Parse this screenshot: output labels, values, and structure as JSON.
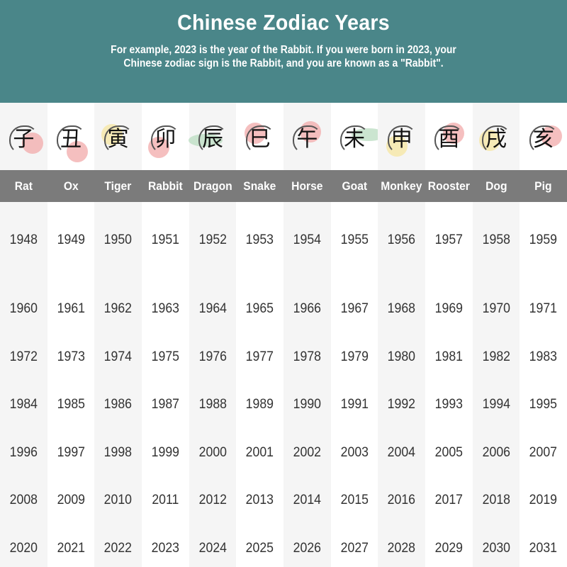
{
  "header": {
    "title": "Chinese Zodiac Years",
    "subtitle": "For example, 2023 is the year of the Rabbit. If you were born in 2023, your Chinese zodiac sign is the Rabbit, and you are known as a \"Rabbit\"."
  },
  "colors": {
    "header_bg": "#4a8689",
    "band_bg": "#7b7b7b",
    "alt_col_bg": "#f5f5f5",
    "pink": "#f2a9a9",
    "yellow": "#f5e6a0",
    "green": "#b9dcc0"
  },
  "signs": [
    {
      "name": "Rat",
      "char": "子",
      "accent": "pink",
      "years": [
        "1948",
        "1960",
        "1972",
        "1984",
        "1996",
        "2008",
        "2020"
      ]
    },
    {
      "name": "Ox",
      "char": "丑",
      "accent": "pink",
      "years": [
        "1949",
        "1961",
        "1973",
        "1985",
        "1997",
        "2009",
        "2021"
      ]
    },
    {
      "name": "Tiger",
      "char": "寅",
      "accent": "yellow",
      "years": [
        "1950",
        "1962",
        "1974",
        "1986",
        "1998",
        "2010",
        "2022"
      ]
    },
    {
      "name": "Rabbit",
      "char": "卯",
      "accent": "pink",
      "years": [
        "1951",
        "1963",
        "1975",
        "1987",
        "1999",
        "2011",
        "2023"
      ]
    },
    {
      "name": "Dragon",
      "char": "辰",
      "accent": "green",
      "years": [
        "1952",
        "1964",
        "1976",
        "1988",
        "2000",
        "2012",
        "2024"
      ]
    },
    {
      "name": "Snake",
      "char": "巳",
      "accent": "pink",
      "years": [
        "1953",
        "1965",
        "1977",
        "1989",
        "2001",
        "2013",
        "2025"
      ]
    },
    {
      "name": "Horse",
      "char": "午",
      "accent": "pink",
      "years": [
        "1954",
        "1966",
        "1978",
        "1990",
        "2002",
        "2014",
        "2026"
      ]
    },
    {
      "name": "Goat",
      "char": "未",
      "accent": "green",
      "years": [
        "1955",
        "1967",
        "1979",
        "1991",
        "2003",
        "2015",
        "2027"
      ]
    },
    {
      "name": "Monkey",
      "char": "申",
      "accent": "yellow",
      "years": [
        "1956",
        "1968",
        "1980",
        "1992",
        "2004",
        "2016",
        "2028"
      ]
    },
    {
      "name": "Rooster",
      "char": "酉",
      "accent": "pink",
      "years": [
        "1957",
        "1969",
        "1981",
        "1993",
        "2005",
        "2017",
        "2029"
      ]
    },
    {
      "name": "Dog",
      "char": "戌",
      "accent": "yellow",
      "years": [
        "1958",
        "1970",
        "1982",
        "1994",
        "2006",
        "2018",
        "2030"
      ]
    },
    {
      "name": "Pig",
      "char": "亥",
      "accent": "pink",
      "years": [
        "1959",
        "1971",
        "1983",
        "1995",
        "2007",
        "2019",
        "2031"
      ]
    }
  ]
}
